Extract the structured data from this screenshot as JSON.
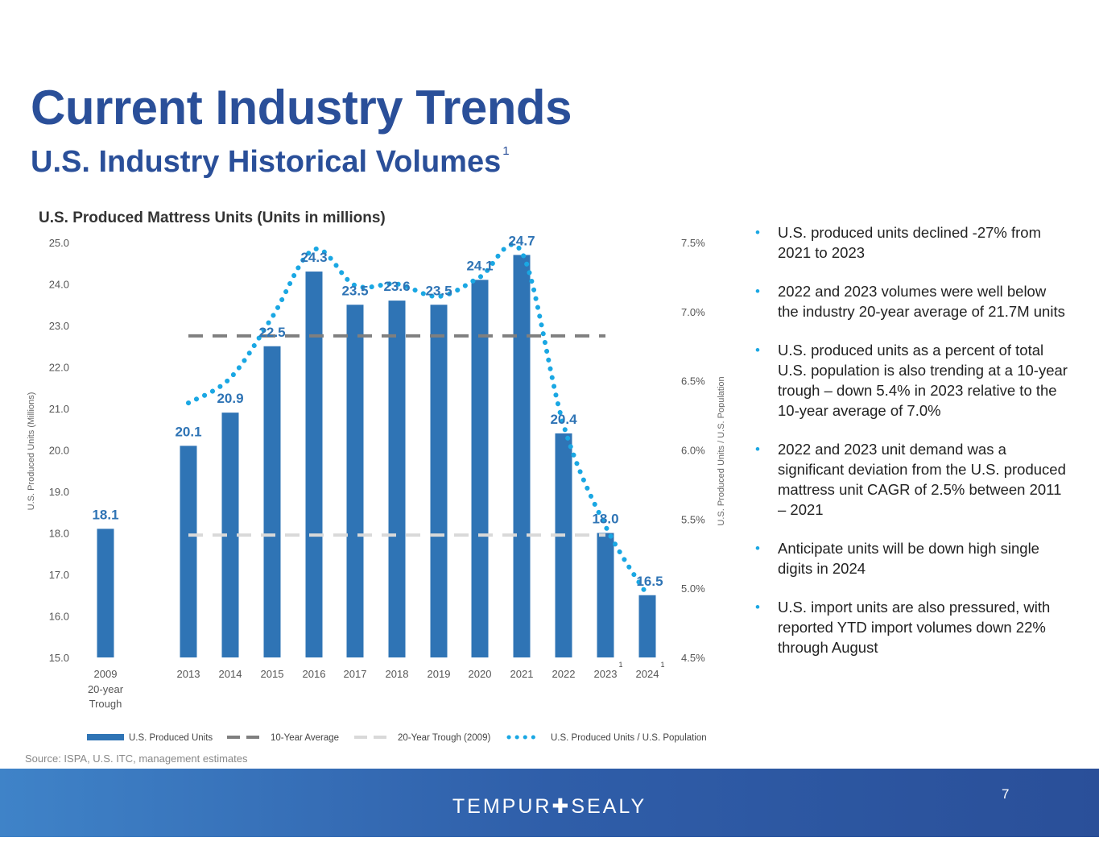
{
  "header": {
    "title": "Current Industry Trends",
    "subtitle": "U.S. Industry Historical Volumes",
    "subtitle_footnote": "1"
  },
  "chart_data": {
    "type": "bar",
    "title": "U.S. Produced Mattress Units (Units in millions)",
    "categories": [
      "2009",
      "2013",
      "2014",
      "2015",
      "2016",
      "2017",
      "2018",
      "2019",
      "2020",
      "2021",
      "2022",
      "2023",
      "2024"
    ],
    "category_sublabels": {
      "2009": [
        "20-year",
        "Trough"
      ]
    },
    "category_footnotes": {
      "2023": "1",
      "2024": "1"
    },
    "series": [
      {
        "name": "U.S. Produced Units",
        "type": "bar",
        "axis": "left",
        "values": [
          18.1,
          20.1,
          20.9,
          22.5,
          24.3,
          23.5,
          23.6,
          23.5,
          24.1,
          24.7,
          20.4,
          18.0,
          16.5
        ],
        "labels": [
          "18.1",
          "20.1",
          "20.9",
          "22.5",
          "24.3",
          "23.5",
          "23.6",
          "23.5",
          "24.1",
          "24.7",
          "20.4",
          "18.0",
          "16.5"
        ]
      },
      {
        "name": "10-Year Average",
        "type": "line",
        "style": "dashed",
        "axis": "left",
        "value": 22.75,
        "from": "2013",
        "to": "2023"
      },
      {
        "name": "20-Year Trough (2009)",
        "type": "line",
        "style": "dashed",
        "axis": "left",
        "value": 17.95,
        "from": "2013",
        "to": "2023"
      },
      {
        "name": "U.S. Produced Units / U.S. Population",
        "type": "line",
        "style": "dotted",
        "axis": "right",
        "x": [
          "2013",
          "2014",
          "2015",
          "2016",
          "2017",
          "2018",
          "2019",
          "2020",
          "2021",
          "2022",
          "2023",
          "2024"
        ],
        "values": [
          6.34,
          6.52,
          6.96,
          7.45,
          7.19,
          7.2,
          7.11,
          7.25,
          7.43,
          6.18,
          5.45,
          4.95
        ]
      }
    ],
    "ylabel": "U.S. Produced Units (Millions)",
    "ylim": [
      15.0,
      25.0
    ],
    "yticks": [
      "15.0",
      "16.0",
      "17.0",
      "18.0",
      "19.0",
      "20.0",
      "21.0",
      "22.0",
      "23.0",
      "24.0",
      "25.0"
    ],
    "y2label": "U.S. Produced Units / U.S. Population",
    "y2lim": [
      4.5,
      7.5
    ],
    "y2ticks": [
      "4.5%",
      "5.0%",
      "5.5%",
      "6.0%",
      "6.5%",
      "7.0%",
      "7.5%"
    ],
    "legend": "bottom",
    "colors": {
      "bar": "#2f74b5",
      "avg": "#7f7f7f",
      "trough": "#d9d9d9",
      "ratio": "#1aa7e3",
      "label": "#2f74b5"
    }
  },
  "bullets": [
    "U.S. produced units declined -27% from 2021 to 2023",
    "2022 and 2023 volumes were well below the industry 20-year average of 21.7M units",
    "U.S. produced units as a percent of total U.S. population is also trending at a 10-year trough – down 5.4% in 2023 relative to the 10-year average of 7.0%",
    "2022 and 2023 unit demand was a significant deviation from the U.S. produced mattress unit CAGR of 2.5% between 2011 – 2021",
    "Anticipate units will be down high single digits in 2024",
    "U.S. import units are also pressured, with reported YTD import volumes down 22% through August"
  ],
  "bullet_glyph": "•",
  "source": "Source: ISPA, U.S. ITC, management estimates",
  "footer": {
    "brand": "TEMPUR✚SEALY",
    "page_number": "7"
  },
  "colors": {
    "title": "#2a4f99",
    "footer_start": "#3f83c8",
    "footer_end": "#2a4f99",
    "bullet": "#1aa7e3"
  }
}
